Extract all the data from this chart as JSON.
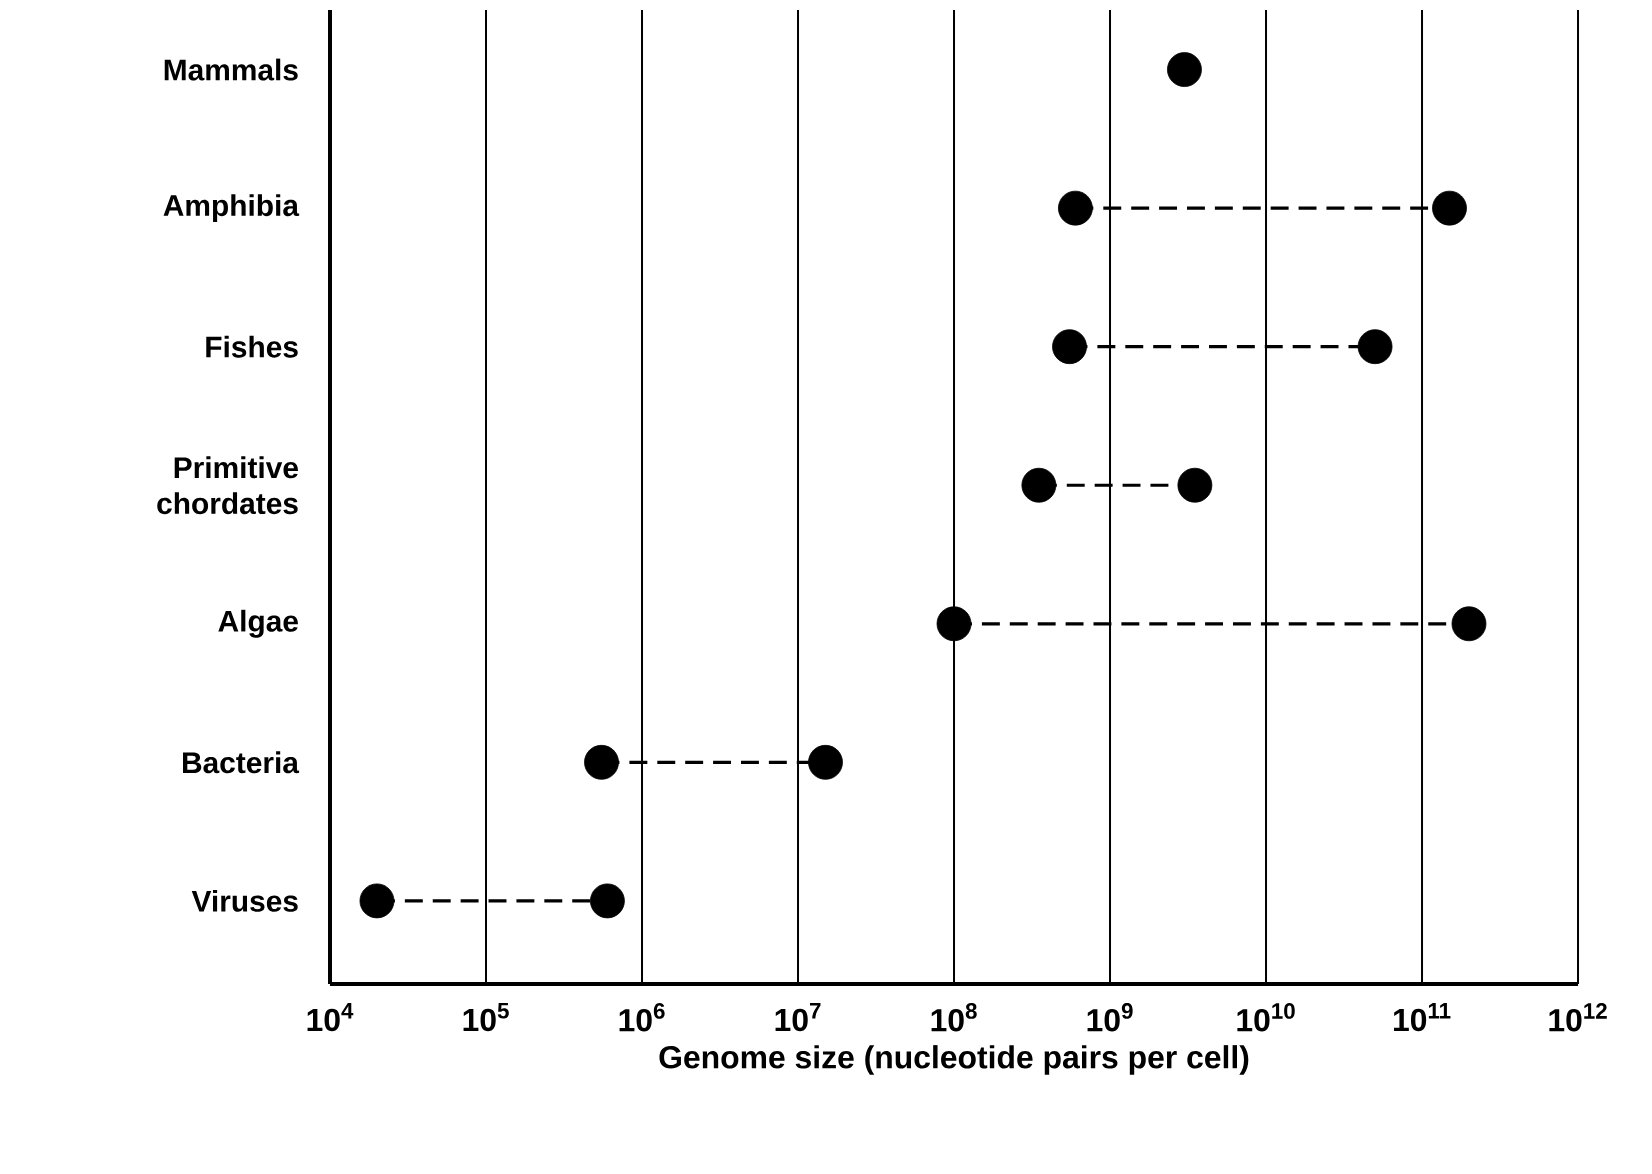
{
  "chart_data": {
    "type": "scatter",
    "orientation": "horizontal",
    "categories": [
      "Mammals",
      "Amphibia",
      "Fishes",
      "Primitive chordates",
      "Algae",
      "Bacteria",
      "Viruses"
    ],
    "series": [
      {
        "color": "#000000",
        "values": [
          3000000000.0,
          600000000.0,
          550000000.0,
          350000000.0,
          100000000.0,
          550000.0,
          20000.0
        ]
      },
      {
        "color": "#000000",
        "values": [
          null,
          150000000000.0,
          50000000000.0,
          3500000000.0,
          200000000000.0,
          15000000.0,
          600000.0
        ]
      }
    ],
    "xlabel": "Genome size (nucleotide pairs per cell)",
    "log": "x",
    "xlim": [
      10000.0,
      1000000000000.0
    ],
    "xticks": [
      {
        "value": 10000.0,
        "label": "10$^{4}$"
      },
      {
        "value": 100000.0,
        "label": "10$^{5}$"
      },
      {
        "value": 1000000.0,
        "label": "10$^{6}$"
      },
      {
        "value": 10000000.0,
        "label": "10$^{7}$"
      },
      {
        "value": 100000000.0,
        "label": "10$^{8}$"
      },
      {
        "value": 1000000000.0,
        "label": "10$^{9}$"
      },
      {
        "value": 10000000000.0,
        "label": "10$^{10}$"
      },
      {
        "value": 100000000000.0,
        "label": "10$^{11}$"
      },
      {
        "value": 1000000000000.0,
        "label": "10$^{12}$"
      }
    ],
    "grid": "x",
    "marker": "circle",
    "line_style": "dashed"
  }
}
